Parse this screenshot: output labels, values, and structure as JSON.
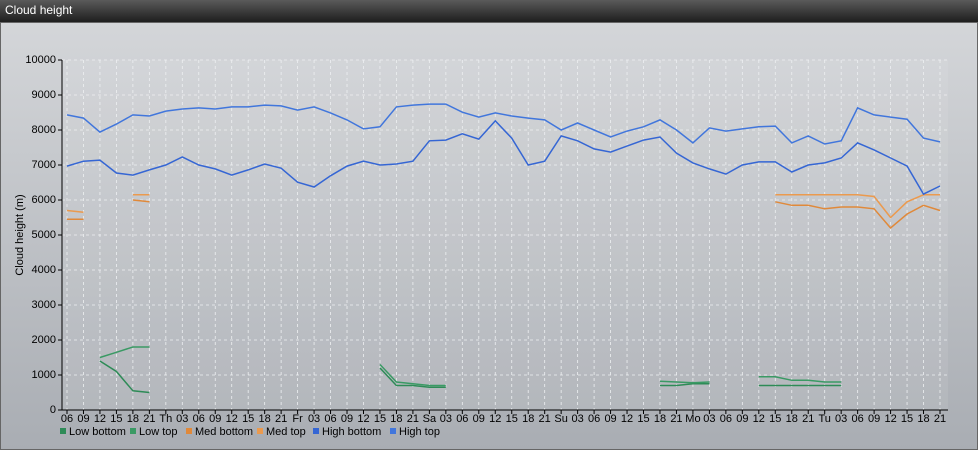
{
  "chart_data": {
    "type": "line",
    "title": "Cloud height",
    "y_label": "Cloud height (m)",
    "categories": [
      "06",
      "09",
      "12",
      "15",
      "18",
      "21",
      "Th",
      "03",
      "06",
      "09",
      "12",
      "15",
      "18",
      "21",
      "Fr",
      "03",
      "06",
      "09",
      "12",
      "15",
      "18",
      "21",
      "Sa",
      "03",
      "06",
      "09",
      "12",
      "15",
      "18",
      "21",
      "Su",
      "03",
      "06",
      "09",
      "12",
      "15",
      "18",
      "21",
      "Mo",
      "03",
      "06",
      "09",
      "12",
      "15",
      "18",
      "21",
      "Tu",
      "03",
      "06",
      "09",
      "12",
      "15",
      "18",
      "21"
    ],
    "ylim": [
      0,
      10000
    ],
    "yticks": [
      0,
      1000,
      2000,
      3000,
      4000,
      5000,
      6000,
      7000,
      8000,
      9000,
      10000
    ],
    "grid": true,
    "legend": "bottom",
    "series": [
      {
        "name": "Low bottom",
        "color": "#2e8b57",
        "values": [
          null,
          null,
          1400,
          1100,
          550,
          500,
          null,
          null,
          null,
          null,
          null,
          null,
          null,
          null,
          null,
          null,
          null,
          null,
          null,
          1200,
          700,
          700,
          650,
          650,
          null,
          null,
          null,
          null,
          null,
          null,
          null,
          null,
          null,
          null,
          null,
          null,
          700,
          700,
          750,
          750,
          null,
          null,
          700,
          700,
          700,
          700,
          700,
          700,
          null,
          null,
          null,
          null,
          null,
          null
        ]
      },
      {
        "name": "Low top",
        "color": "#3a9a64",
        "values": [
          null,
          null,
          1500,
          1650,
          1800,
          1800,
          null,
          null,
          null,
          null,
          null,
          null,
          null,
          null,
          null,
          null,
          null,
          null,
          null,
          1300,
          800,
          750,
          700,
          700,
          null,
          null,
          null,
          null,
          null,
          null,
          null,
          null,
          null,
          null,
          null,
          null,
          820,
          800,
          780,
          800,
          null,
          null,
          950,
          950,
          850,
          850,
          800,
          800,
          null,
          null,
          null,
          null,
          null,
          null
        ]
      },
      {
        "name": "Med bottom",
        "color": "#e0893a",
        "values": [
          5450,
          5450,
          null,
          null,
          6000,
          5950,
          null,
          null,
          null,
          null,
          null,
          null,
          null,
          null,
          null,
          null,
          null,
          null,
          null,
          null,
          null,
          null,
          null,
          null,
          null,
          null,
          null,
          null,
          null,
          null,
          null,
          null,
          null,
          null,
          null,
          null,
          null,
          null,
          null,
          null,
          null,
          null,
          null,
          5950,
          5850,
          5850,
          5750,
          5800,
          5800,
          5750,
          5200,
          5600,
          5850,
          5700
        ]
      },
      {
        "name": "Med top",
        "color": "#eb9a4e",
        "values": [
          5700,
          5650,
          null,
          null,
          6150,
          6150,
          null,
          null,
          null,
          null,
          null,
          null,
          null,
          null,
          null,
          null,
          null,
          null,
          null,
          null,
          null,
          null,
          null,
          null,
          null,
          null,
          null,
          null,
          null,
          null,
          null,
          null,
          null,
          null,
          null,
          null,
          null,
          null,
          null,
          null,
          null,
          null,
          null,
          6150,
          6150,
          6150,
          6150,
          6150,
          6150,
          6100,
          5500,
          5950,
          6150,
          6150
        ]
      },
      {
        "name": "High bottom",
        "color": "#3566d4",
        "values": [
          6970,
          7110,
          7140,
          6770,
          6710,
          6860,
          7000,
          7230,
          7000,
          6890,
          6710,
          6860,
          7030,
          6910,
          6510,
          6370,
          6690,
          6970,
          7110,
          7000,
          7030,
          7110,
          7690,
          7710,
          7890,
          7740,
          8260,
          7770,
          7000,
          7110,
          7830,
          7690,
          7460,
          7370,
          7540,
          7710,
          7800,
          7340,
          7060,
          6890,
          6740,
          7000,
          7090,
          7090,
          6800,
          7000,
          7060,
          7200,
          7630,
          7430,
          7200,
          6970,
          6170,
          6400
        ]
      },
      {
        "name": "High top",
        "color": "#4176dc",
        "values": [
          8430,
          8340,
          7940,
          8170,
          8430,
          8400,
          8540,
          8600,
          8630,
          8600,
          8660,
          8660,
          8710,
          8690,
          8570,
          8660,
          8490,
          8290,
          8030,
          8090,
          8660,
          8710,
          8740,
          8740,
          8510,
          8370,
          8490,
          8400,
          8340,
          8290,
          8000,
          8200,
          8000,
          7800,
          7970,
          8090,
          8290,
          8000,
          7630,
          8060,
          7970,
          8030,
          8090,
          8110,
          7630,
          7830,
          7600,
          7690,
          8630,
          8430,
          8370,
          8310,
          7770,
          7660
        ]
      }
    ]
  }
}
